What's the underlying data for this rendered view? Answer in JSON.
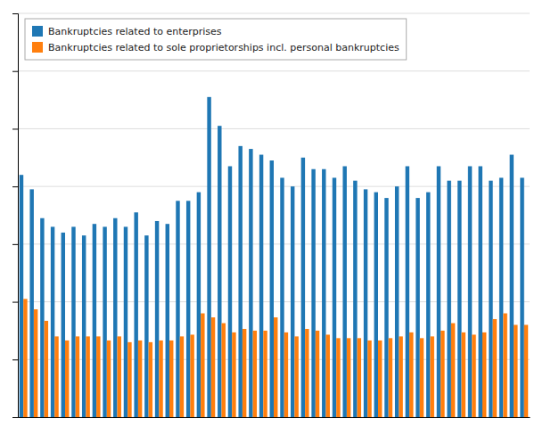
{
  "chart_data": {
    "type": "bar",
    "categories": [
      null,
      null,
      null,
      null,
      null,
      null,
      null,
      null,
      null,
      null,
      null,
      null,
      null,
      null,
      null,
      null,
      null,
      null,
      null,
      null,
      null,
      null,
      null,
      null,
      null,
      null,
      null,
      null,
      null,
      null,
      null,
      null,
      null,
      null,
      null,
      null,
      null,
      null,
      null,
      null,
      null,
      null,
      null,
      null,
      null,
      null,
      null,
      null,
      null
    ],
    "series": [
      {
        "name": "Bankruptcies related to enterprises",
        "values": [
          420,
          395,
          345,
          330,
          320,
          330,
          315,
          335,
          330,
          345,
          330,
          355,
          315,
          340,
          335,
          375,
          375,
          390,
          555,
          505,
          435,
          470,
          465,
          455,
          445,
          415,
          400,
          450,
          430,
          430,
          415,
          435,
          410,
          395,
          390,
          380,
          400,
          435,
          380,
          390,
          435,
          410,
          410,
          435,
          435,
          410,
          415,
          455,
          415
        ]
      },
      {
        "name": "Bankruptcies related to sole proprietorships incl. personal bankruptcies",
        "values": [
          205,
          187,
          167,
          140,
          133,
          140,
          140,
          140,
          133,
          140,
          130,
          133,
          130,
          133,
          133,
          140,
          143,
          180,
          173,
          163,
          147,
          153,
          150,
          150,
          173,
          147,
          140,
          153,
          150,
          143,
          137,
          137,
          137,
          133,
          133,
          137,
          140,
          147,
          137,
          140,
          150,
          163,
          147,
          143,
          147,
          170,
          180,
          160,
          160
        ]
      }
    ],
    "ylim": [
      0,
      700
    ],
    "yticks": [
      0,
      100,
      200,
      300,
      400,
      500,
      600,
      700
    ],
    "grid": true,
    "legend": "upper left",
    "tick_labels": false
  }
}
